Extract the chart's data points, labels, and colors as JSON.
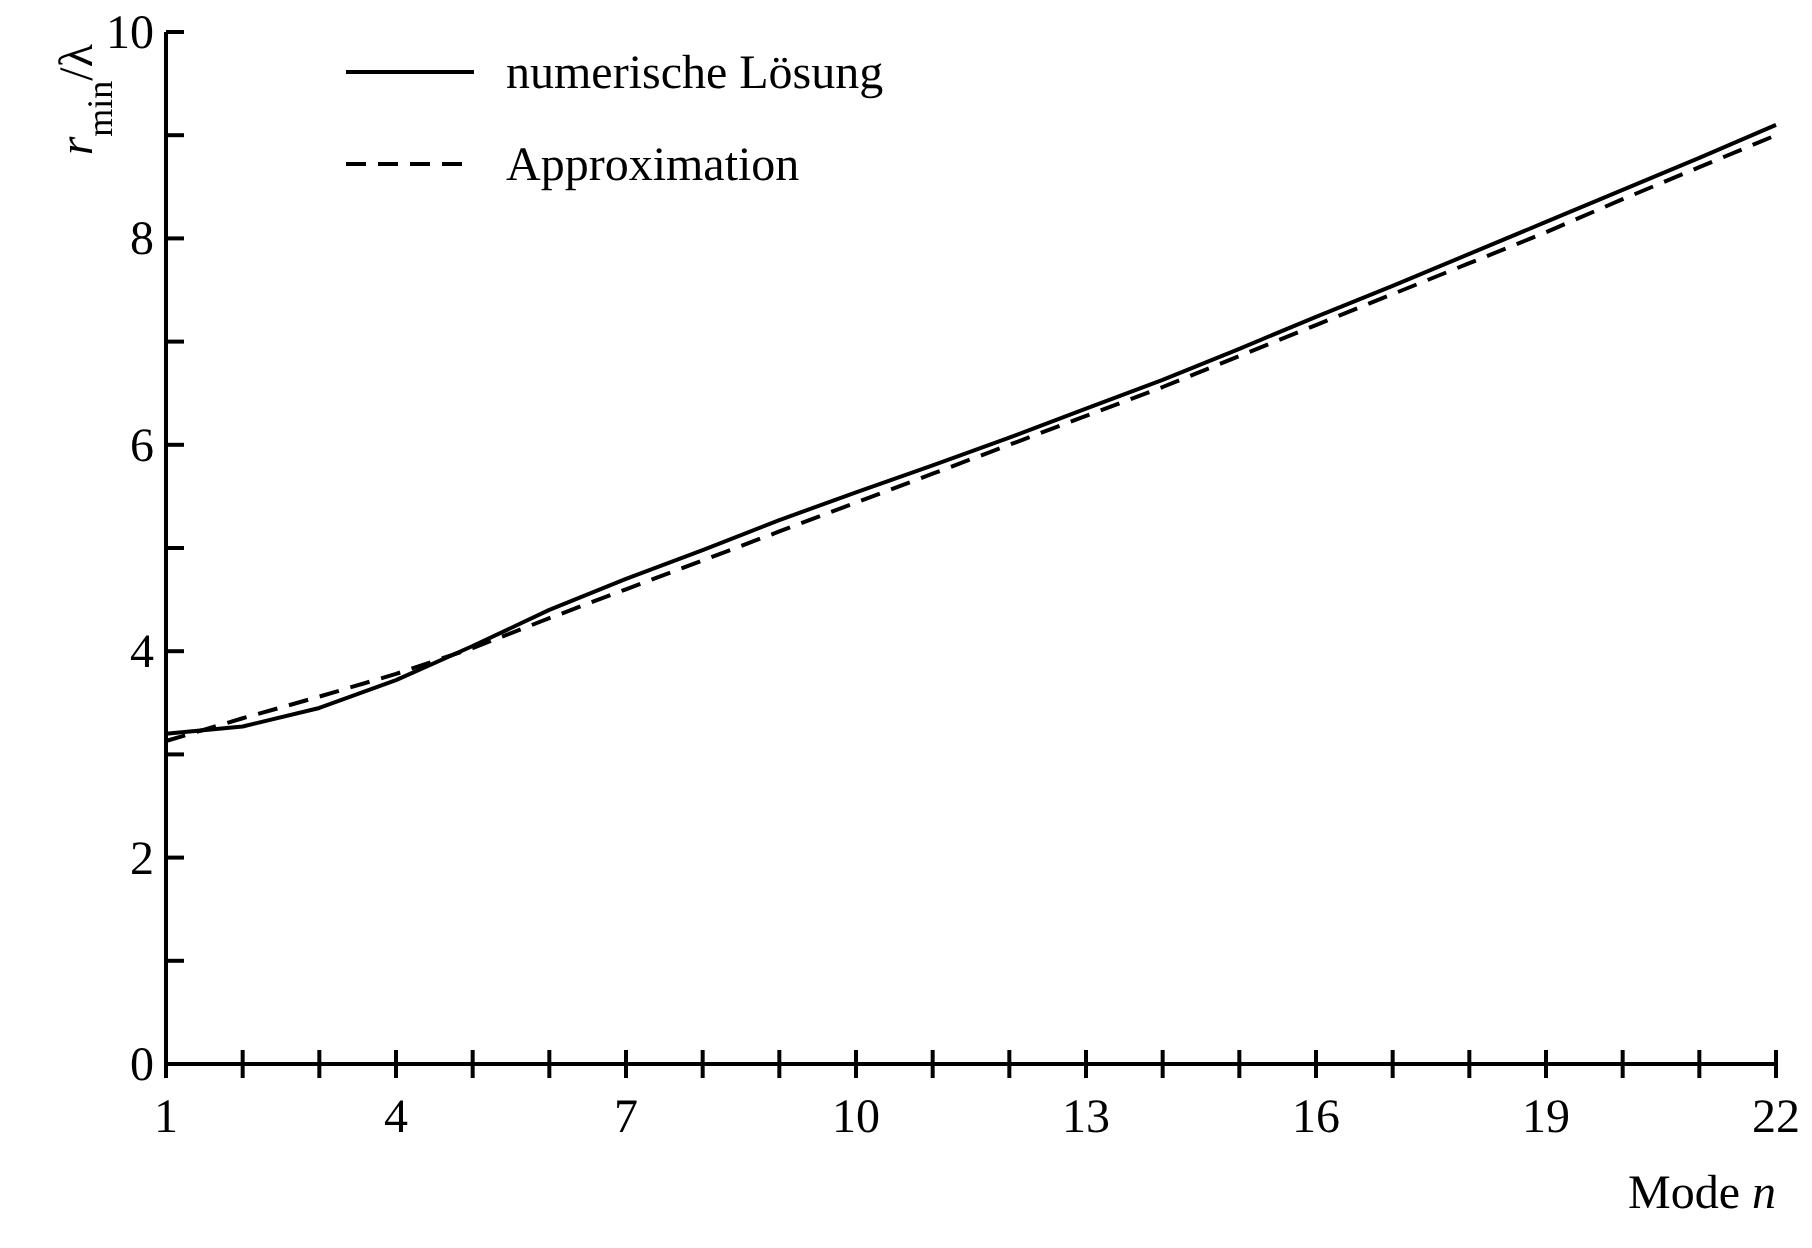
{
  "chart_data": {
    "type": "line",
    "xlabel": "Mode n",
    "ylabel": "r$_{min}$/λ",
    "x": [
      1,
      2,
      3,
      4,
      5,
      6,
      7,
      8,
      9,
      10,
      11,
      12,
      13,
      14,
      15,
      16,
      17,
      18,
      19,
      20,
      21,
      22
    ],
    "series": [
      {
        "name": "numerische Lösung",
        "color": "#000000",
        "line_style": "solid",
        "values": [
          3.2,
          3.27,
          3.45,
          3.72,
          4.05,
          4.4,
          4.7,
          4.98,
          5.27,
          5.54,
          5.8,
          6.07,
          6.35,
          6.63,
          6.93,
          7.24,
          7.54,
          7.85,
          8.16,
          8.47,
          8.78,
          9.1
        ]
      },
      {
        "name": "Approximation",
        "color": "#000000",
        "line_style": "dashed",
        "values": [
          3.13,
          3.35,
          3.56,
          3.78,
          4.03,
          4.32,
          4.6,
          4.88,
          5.16,
          5.44,
          5.72,
          6.0,
          6.28,
          6.56,
          6.86,
          7.16,
          7.46,
          7.76,
          8.06,
          8.38,
          8.69,
          9.0
        ]
      }
    ],
    "xlim": [
      1,
      22
    ],
    "xticks": [
      1,
      {
        "value": 2,
        "label": null
      },
      {
        "value": 3,
        "label": null
      },
      4,
      {
        "value": 5,
        "label": null
      },
      {
        "value": 6,
        "label": null
      },
      7,
      {
        "value": 8,
        "label": null
      },
      {
        "value": 9,
        "label": null
      },
      10,
      {
        "value": 11,
        "label": null
      },
      {
        "value": 12,
        "label": null
      },
      13,
      {
        "value": 14,
        "label": null
      },
      {
        "value": 15,
        "label": null
      },
      16,
      {
        "value": 17,
        "label": null
      },
      {
        "value": 18,
        "label": null
      },
      19,
      {
        "value": 20,
        "label": null
      },
      {
        "value": 21,
        "label": null
      },
      22
    ],
    "ylim": [
      0,
      10
    ],
    "yticks": [
      0,
      {
        "value": 1,
        "label": null
      },
      2,
      {
        "value": 3,
        "label": null
      },
      4,
      {
        "value": 5,
        "label": null
      },
      6,
      {
        "value": 7,
        "label": null
      },
      8,
      {
        "value": 9,
        "label": null
      },
      10
    ],
    "grid": false,
    "legend": "top left"
  }
}
